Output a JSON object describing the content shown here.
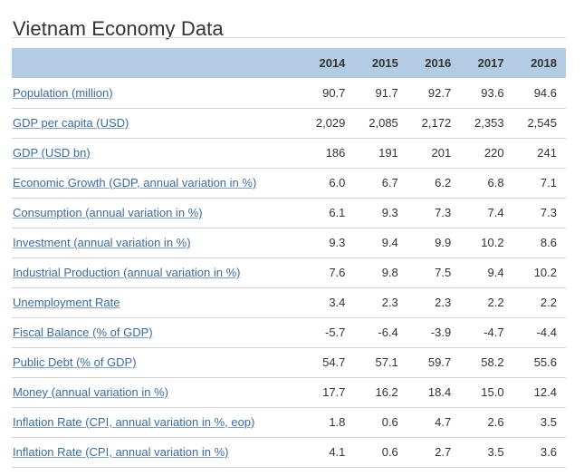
{
  "title": "Vietnam Economy Data",
  "years": [
    "2014",
    "2015",
    "2016",
    "2017",
    "2018"
  ],
  "rows": [
    {
      "label": "Population (million)",
      "values": [
        "90.7",
        "91.7",
        "92.7",
        "93.6",
        "94.6"
      ]
    },
    {
      "label": "GDP per capita (USD)",
      "values": [
        "2,029",
        "2,085",
        "2,172",
        "2,353",
        "2,545"
      ]
    },
    {
      "label": "GDP (USD bn)",
      "values": [
        "186",
        "191",
        "201",
        "220",
        "241"
      ]
    },
    {
      "label": "Economic Growth (GDP, annual variation in %)",
      "values": [
        "6.0",
        "6.7",
        "6.2",
        "6.8",
        "7.1"
      ]
    },
    {
      "label": "Consumption (annual variation in %)",
      "values": [
        "6.1",
        "9.3",
        "7.3",
        "7.4",
        "7.3"
      ]
    },
    {
      "label": "Investment (annual variation in %)",
      "values": [
        "9.3",
        "9.4",
        "9.9",
        "10.2",
        "8.6"
      ]
    },
    {
      "label": "Industrial Production (annual variation in %)",
      "values": [
        "7.6",
        "9.8",
        "7.5",
        "9.4",
        "10.2"
      ]
    },
    {
      "label": "Unemployment Rate",
      "values": [
        "3.4",
        "2.3",
        "2.3",
        "2.2",
        "2.2"
      ]
    },
    {
      "label": "Fiscal Balance (% of GDP)",
      "values": [
        "-5.7",
        "-6.4",
        "-3.9",
        "-4.7",
        "-4.4"
      ]
    },
    {
      "label": "Public Debt (% of GDP)",
      "values": [
        "54.7",
        "57.1",
        "59.7",
        "58.2",
        "55.6"
      ]
    },
    {
      "label": "Money (annual variation in %)",
      "values": [
        "17.7",
        "16.2",
        "18.4",
        "15.0",
        "12.4"
      ]
    },
    {
      "label": "Inflation Rate (CPI, annual variation in %, eop)",
      "values": [
        "1.8",
        "0.6",
        "4.7",
        "2.6",
        "3.5"
      ]
    },
    {
      "label": "Inflation Rate (CPI, annual variation in %)",
      "values": [
        "4.1",
        "0.6",
        "2.7",
        "3.5",
        "3.6"
      ]
    }
  ],
  "colors": {
    "header_bg": "#b3cbe3",
    "link": "#3d6a9e"
  }
}
